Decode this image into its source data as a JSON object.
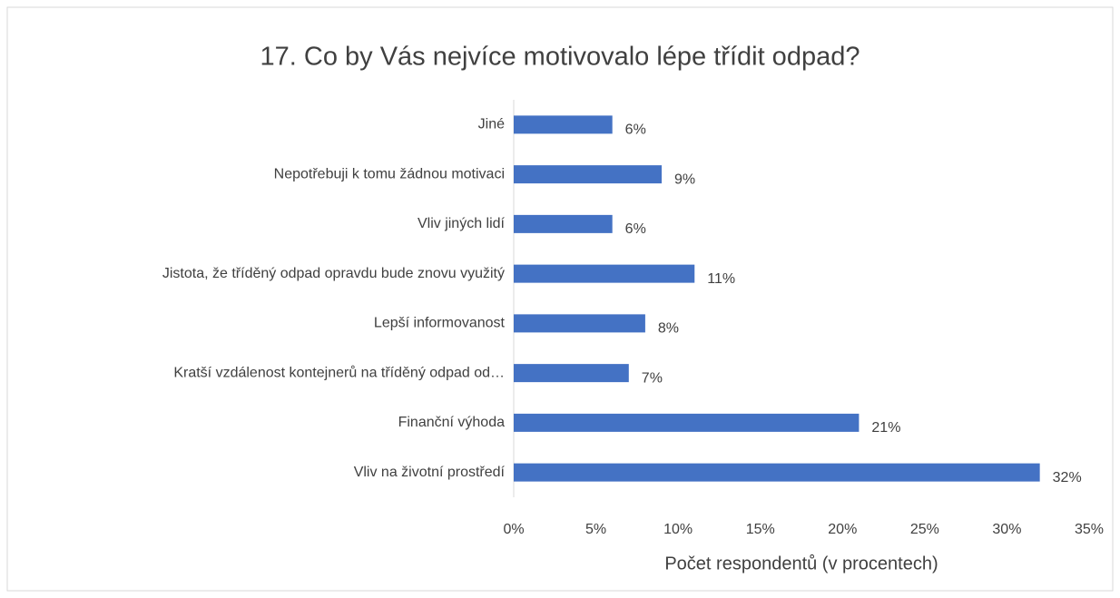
{
  "chart_data": {
    "type": "bar",
    "orientation": "horizontal",
    "title": "17. Co by Vás nejvíce motivovalo lépe třídit odpad?",
    "x_label": "Počet respondentů (v procentech)",
    "categories": [
      "Jiné",
      "Nepotřebuji k tomu žádnou motivaci",
      "Vliv jiných lidí",
      "Jistota, že tříděný odpad opravdu bude znovu využitý",
      "Lepší informovanost",
      "Kratší vzdálenost kontejnerů na tříděný odpad od…",
      "Finanční výhoda",
      "Vliv na životní prostředí"
    ],
    "values": [
      6,
      9,
      6,
      11,
      8,
      7,
      21,
      32
    ],
    "value_labels": [
      "6%",
      "9%",
      "6%",
      "11%",
      "8%",
      "7%",
      "21%",
      "32%"
    ],
    "color": "#4472c4",
    "xlim": [
      0,
      35
    ],
    "xticks": [
      {
        "value": 0,
        "label": "0%"
      },
      {
        "value": 5,
        "label": "5%"
      },
      {
        "value": 10,
        "label": "10%"
      },
      {
        "value": 15,
        "label": "15%"
      },
      {
        "value": 20,
        "label": "20%"
      },
      {
        "value": 25,
        "label": "25%"
      },
      {
        "value": 30,
        "label": "30%"
      },
      {
        "value": 35,
        "label": "35%"
      }
    ],
    "grid": false
  }
}
